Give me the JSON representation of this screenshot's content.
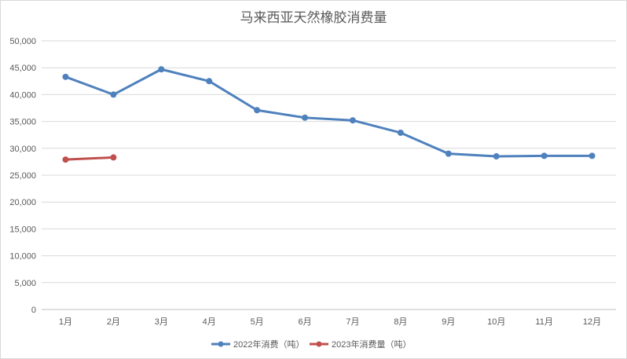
{
  "chart_data": {
    "type": "line",
    "title": "马来西亚天然橡胶消费量",
    "xlabel": "",
    "ylabel": "",
    "categories": [
      "1月",
      "2月",
      "3月",
      "4月",
      "5月",
      "6月",
      "7月",
      "8月",
      "9月",
      "10月",
      "11月",
      "12月"
    ],
    "y_tick_labels": [
      "0",
      "5,000",
      "10,000",
      "15,000",
      "20,000",
      "25,000",
      "30,000",
      "35,000",
      "40,000",
      "45,000",
      "50,000"
    ],
    "ylim": [
      0,
      50000
    ],
    "y_step": 5000,
    "grid": true,
    "legend_position": "bottom",
    "series": [
      {
        "name": "2022年消费（吨）",
        "color": "#4f81bd",
        "values": [
          43300,
          40000,
          44700,
          42500,
          37100,
          35700,
          35200,
          32900,
          29000,
          28500,
          28600,
          28600
        ]
      },
      {
        "name": "2023年消费量（吨）",
        "color": "#c0504d",
        "values": [
          27900,
          28300,
          null,
          null,
          null,
          null,
          null,
          null,
          null,
          null,
          null,
          null
        ]
      }
    ]
  }
}
